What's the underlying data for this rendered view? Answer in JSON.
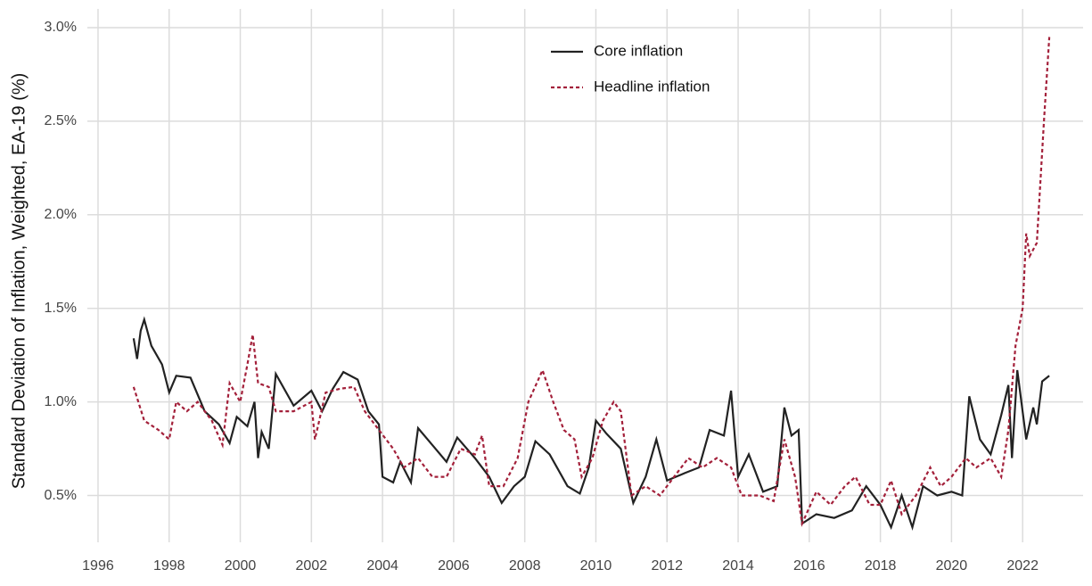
{
  "chart_data": {
    "type": "line",
    "y_label": "Standard Deviation of Inflation, Weighted, EA-19 (%)",
    "xlim": [
      1995.7,
      2023.7
    ],
    "ylim": [
      0.25,
      3.1
    ],
    "xticks": [
      1996,
      1998,
      2000,
      2002,
      2004,
      2006,
      2008,
      2010,
      2012,
      2014,
      2016,
      2018,
      2020,
      2022
    ],
    "yticks": [
      {
        "value": 0.5,
        "label": "0.5%"
      },
      {
        "value": 1.0,
        "label": "1.0%"
      },
      {
        "value": 1.5,
        "label": "1.5%"
      },
      {
        "value": 2.0,
        "label": "2.0%"
      },
      {
        "value": 2.5,
        "label": "2.5%"
      },
      {
        "value": 3.0,
        "label": "3.0%"
      }
    ],
    "grid": true,
    "legend": "top",
    "series": [
      {
        "name": "Core inflation",
        "color": "#222222",
        "dash": "solid",
        "x": [
          1997.0,
          1997.1,
          1997.2,
          1997.3,
          1997.5,
          1997.8,
          1998.0,
          1998.2,
          1998.6,
          1999.0,
          1999.4,
          1999.7,
          1999.9,
          2000.2,
          2000.4,
          2000.5,
          2000.6,
          2000.8,
          2001.0,
          2001.5,
          2002.0,
          2002.3,
          2002.6,
          2002.9,
          2003.3,
          2003.6,
          2003.9,
          2004.0,
          2004.3,
          2004.5,
          2004.8,
          2005.0,
          2005.4,
          2005.8,
          2006.1,
          2006.6,
          2007.0,
          2007.35,
          2007.7,
          2008.0,
          2008.3,
          2008.7,
          2009.2,
          2009.55,
          2009.8,
          2010.0,
          2010.3,
          2010.7,
          2011.05,
          2011.4,
          2011.7,
          2012.0,
          2012.5,
          2012.9,
          2013.2,
          2013.6,
          2013.8,
          2014.0,
          2014.3,
          2014.7,
          2015.1,
          2015.3,
          2015.5,
          2015.7,
          2015.8,
          2016.2,
          2016.7,
          2017.2,
          2017.6,
          2018.0,
          2018.3,
          2018.6,
          2018.9,
          2019.2,
          2019.6,
          2020.0,
          2020.3,
          2020.5,
          2020.8,
          2021.1,
          2021.4,
          2021.6,
          2021.7,
          2021.85,
          2022.1,
          2022.3,
          2022.4,
          2022.55,
          2022.75
        ],
        "values": [
          1.34,
          1.23,
          1.38,
          1.44,
          1.3,
          1.2,
          1.05,
          1.14,
          1.13,
          0.95,
          0.88,
          0.78,
          0.92,
          0.87,
          1.0,
          0.7,
          0.84,
          0.75,
          1.15,
          0.98,
          1.06,
          0.95,
          1.07,
          1.16,
          1.12,
          0.95,
          0.88,
          0.6,
          0.57,
          0.68,
          0.57,
          0.86,
          0.77,
          0.68,
          0.81,
          0.7,
          0.6,
          0.46,
          0.55,
          0.6,
          0.79,
          0.72,
          0.55,
          0.51,
          0.65,
          0.9,
          0.83,
          0.75,
          0.46,
          0.6,
          0.8,
          0.58,
          0.62,
          0.65,
          0.85,
          0.82,
          1.06,
          0.6,
          0.72,
          0.52,
          0.55,
          0.97,
          0.82,
          0.85,
          0.35,
          0.4,
          0.38,
          0.42,
          0.55,
          0.45,
          0.33,
          0.5,
          0.33,
          0.55,
          0.5,
          0.52,
          0.5,
          1.03,
          0.8,
          0.72,
          0.93,
          1.09,
          0.7,
          1.17,
          0.8,
          0.97,
          0.88,
          1.11,
          1.14
        ]
      },
      {
        "name": "Headline inflation",
        "color": "#a3203a",
        "dash": "dotted",
        "x": [
          1997.0,
          1997.3,
          1997.7,
          1998.0,
          1998.2,
          1998.5,
          1998.8,
          1999.2,
          1999.5,
          1999.7,
          2000.0,
          2000.2,
          2000.35,
          2000.5,
          2000.8,
          2001.0,
          2001.5,
          2002.0,
          2002.1,
          2002.4,
          2002.8,
          2003.2,
          2003.5,
          2003.9,
          2004.3,
          2004.6,
          2005.0,
          2005.4,
          2005.8,
          2006.2,
          2006.6,
          2006.8,
          2007.0,
          2007.4,
          2007.8,
          2008.1,
          2008.5,
          2008.8,
          2009.1,
          2009.4,
          2009.6,
          2009.9,
          2010.2,
          2010.5,
          2010.7,
          2011.0,
          2011.4,
          2011.8,
          2012.2,
          2012.6,
          2013.0,
          2013.4,
          2013.8,
          2014.1,
          2014.6,
          2015.0,
          2015.3,
          2015.6,
          2015.8,
          2016.2,
          2016.6,
          2017.0,
          2017.3,
          2017.7,
          2018.0,
          2018.3,
          2018.6,
          2019.0,
          2019.4,
          2019.7,
          2020.0,
          2020.4,
          2020.7,
          2021.1,
          2021.4,
          2021.6,
          2021.8,
          2022.0,
          2022.1,
          2022.2,
          2022.4,
          2022.6,
          2022.75
        ],
        "values": [
          1.08,
          0.9,
          0.85,
          0.8,
          1.0,
          0.95,
          1.0,
          0.9,
          0.77,
          1.1,
          1.0,
          1.2,
          1.36,
          1.1,
          1.08,
          0.95,
          0.95,
          1.0,
          0.8,
          1.05,
          1.07,
          1.08,
          0.95,
          0.85,
          0.75,
          0.65,
          0.7,
          0.6,
          0.6,
          0.75,
          0.72,
          0.82,
          0.55,
          0.55,
          0.7,
          1.0,
          1.17,
          1.0,
          0.85,
          0.8,
          0.6,
          0.7,
          0.9,
          1.0,
          0.95,
          0.5,
          0.55,
          0.5,
          0.6,
          0.7,
          0.65,
          0.7,
          0.65,
          0.5,
          0.5,
          0.47,
          0.8,
          0.6,
          0.35,
          0.52,
          0.45,
          0.55,
          0.6,
          0.45,
          0.45,
          0.58,
          0.4,
          0.5,
          0.65,
          0.55,
          0.6,
          0.7,
          0.65,
          0.7,
          0.6,
          0.85,
          1.3,
          1.5,
          1.9,
          1.78,
          1.85,
          2.5,
          2.95
        ]
      }
    ]
  }
}
